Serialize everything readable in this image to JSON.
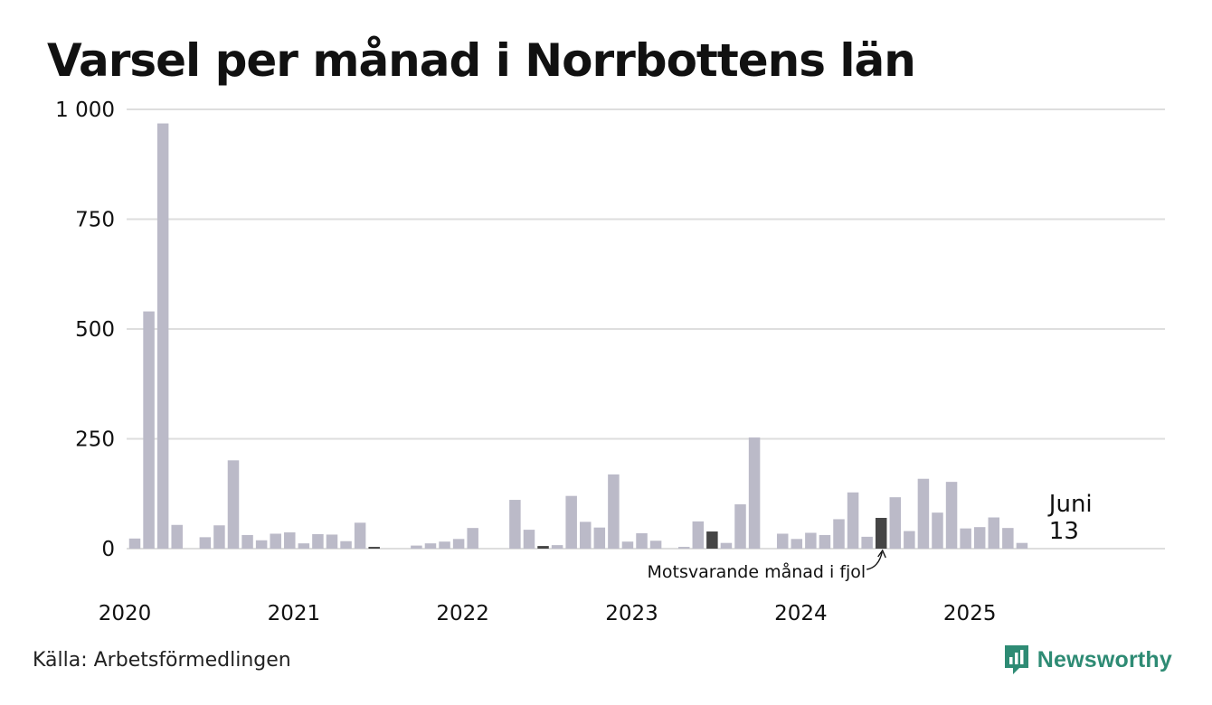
{
  "title": "Varsel per månad i Norrbottens län",
  "source": "Källa: Arbetsförmedlingen",
  "brand": {
    "name": "Newsworthy",
    "icon": "newsworthy-logo-icon"
  },
  "colors": {
    "bar": "#bbbac8",
    "highlight": "#454545",
    "current": "#1a8a80",
    "grid": "#dedede",
    "text": "#111111"
  },
  "chart_data": {
    "type": "bar",
    "title": "Varsel per månad i Norrbottens län",
    "xlabel": "",
    "ylabel": "",
    "ylim": [
      0,
      1000
    ],
    "yticks": [
      {
        "value": 0,
        "label": "0"
      },
      {
        "value": 250,
        "label": "250"
      },
      {
        "value": 500,
        "label": "500"
      },
      {
        "value": 750,
        "label": "750"
      },
      {
        "value": 1000,
        "label": "1 000"
      }
    ],
    "xticks": [
      "2020",
      "2021",
      "2022",
      "2023",
      "2024",
      "2025"
    ],
    "grid": true,
    "start": "2020-01",
    "end": "2025-12",
    "values": [
      23,
      540,
      968,
      54,
      0,
      26,
      53,
      201,
      31,
      19,
      34,
      37,
      12,
      33,
      32,
      17,
      59,
      4,
      0,
      0,
      7,
      12,
      16,
      22,
      47,
      0,
      0,
      111,
      43,
      6,
      8,
      120,
      61,
      48,
      169,
      16,
      35,
      18,
      0,
      4,
      62,
      39,
      13,
      101,
      253,
      0,
      34,
      22,
      36,
      31,
      67,
      128,
      27,
      70,
      117,
      40,
      159,
      82,
      152,
      46,
      49,
      71,
      47,
      13
    ],
    "highlight_months": [
      "2021-06",
      "2022-06",
      "2023-06",
      "2024-06"
    ],
    "current": {
      "month": "2025-06",
      "label": "Juni",
      "value_label": "13"
    },
    "annotation": {
      "text": "Motsvarande månad i fjol",
      "month": "2024-06"
    }
  }
}
